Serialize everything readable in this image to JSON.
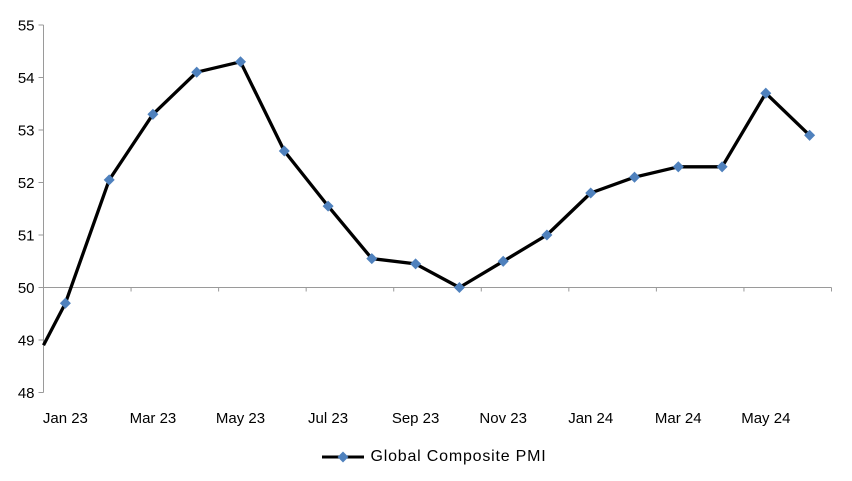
{
  "chart_data": {
    "type": "line",
    "title": "",
    "legend": {
      "label": "Global Composite PMI",
      "position": "bottom"
    },
    "x": [
      "Jan 23",
      "Feb 23",
      "Mar 23",
      "Apr 23",
      "May 23",
      "Jun 23",
      "Jul 23",
      "Aug 23",
      "Sep 23",
      "Oct 23",
      "Nov 23",
      "Dec 23",
      "Jan 24",
      "Feb 24",
      "Mar 24",
      "Apr 24",
      "May 24",
      "Jun 24"
    ],
    "x_tick_labels_shown": [
      "Jan 23",
      "Mar 23",
      "May 23",
      "Jul 23",
      "Sep 23",
      "Nov 23",
      "Jan 24",
      "Mar 24",
      "May 24"
    ],
    "x_label_step": 2,
    "series": [
      {
        "name": "Global Composite PMI",
        "values": [
          49.7,
          52.05,
          53.3,
          54.1,
          54.3,
          52.6,
          51.55,
          50.55,
          50.45,
          50.0,
          50.5,
          51.0,
          51.8,
          52.1,
          52.3,
          52.3,
          53.7,
          52.9
        ]
      }
    ],
    "line_enters_left_edge_at": 48.9,
    "ylim": [
      48,
      55
    ],
    "y_ticks": [
      48,
      49,
      50,
      51,
      52,
      53,
      54,
      55
    ],
    "x_axis_cross_at": 50,
    "x_tick_every_n_categories": 2,
    "grid": false,
    "marker_shape": "diamond",
    "colors": {
      "line": "#000000",
      "marker": "#4F81BD",
      "axis": "#9A9A9A",
      "text": "#000000",
      "background": "#FFFFFF"
    }
  }
}
